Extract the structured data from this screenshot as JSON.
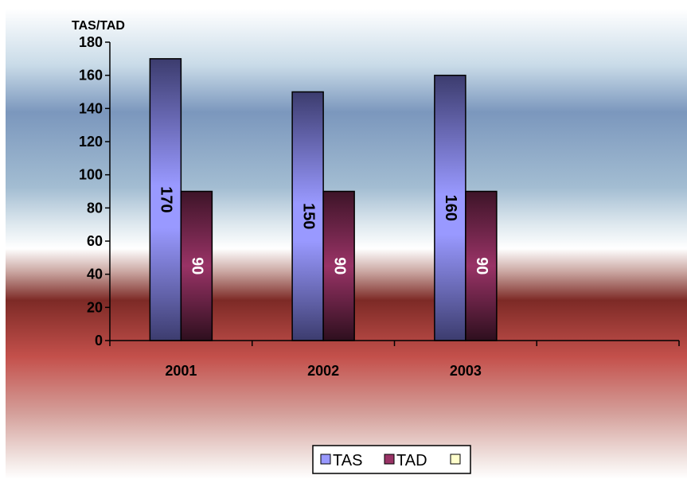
{
  "chart_data": {
    "type": "bar",
    "categories": [
      "2001",
      "2002",
      "2003",
      ""
    ],
    "series": [
      {
        "name": "TAS",
        "values": [
          170,
          150,
          160,
          null
        ],
        "color": "#9999ff"
      },
      {
        "name": "TAD",
        "values": [
          90,
          90,
          90,
          null
        ],
        "color": "#993366"
      },
      {
        "name": "",
        "values": [
          null,
          null,
          null,
          null
        ],
        "color": "#ffffcc"
      }
    ],
    "ylabel": "TAS/TAD",
    "ylim": [
      0,
      180
    ],
    "yticks": [
      "0",
      "20",
      "40",
      "60",
      "80",
      "100",
      "120",
      "140",
      "160",
      "180"
    ],
    "data_labels": {
      "TAS": [
        "170",
        "150",
        "160"
      ],
      "TAD": [
        "90",
        "90",
        "90"
      ]
    },
    "label_colors": {
      "TAS": "#000000",
      "TAD": "#ffffff"
    },
    "grid": false,
    "legend_position": "bottom"
  }
}
